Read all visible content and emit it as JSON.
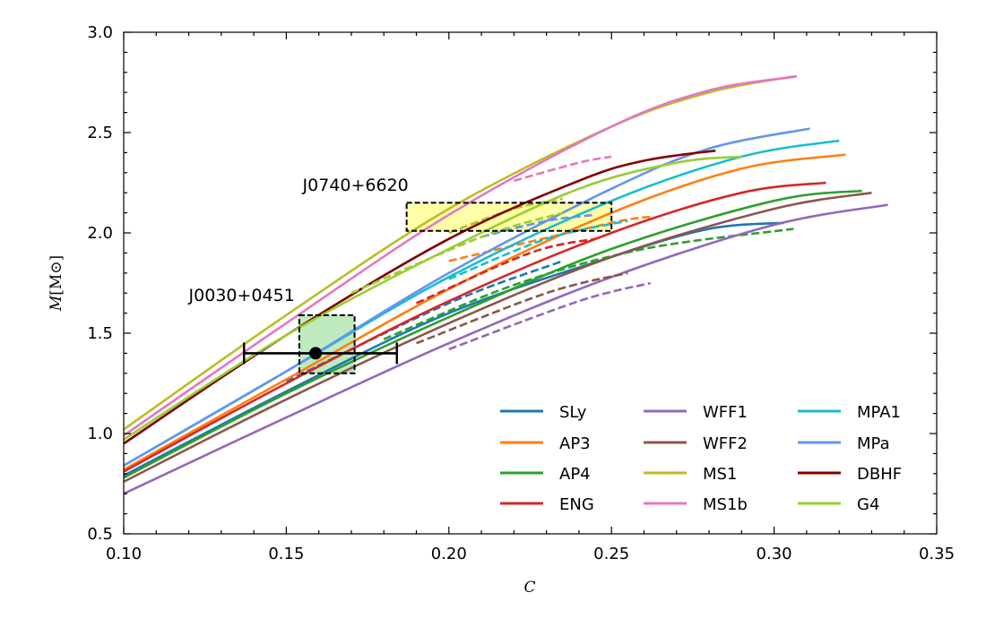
{
  "chart_data": {
    "type": "line",
    "title": "",
    "xlabel": "C",
    "ylabel": "M[M_⊙]",
    "ylabel_main": "M",
    "ylabel_sub": "[M",
    "ylabel_sym": "⊙",
    "ylabel_end": "]",
    "xlim": [
      0.1,
      0.35
    ],
    "ylim": [
      0.5,
      3.0
    ],
    "x_ticks": [
      "0.10",
      "0.15",
      "0.20",
      "0.25",
      "0.30",
      "0.35"
    ],
    "x_tick_values": [
      0.1,
      0.15,
      0.2,
      0.25,
      0.3,
      0.35
    ],
    "y_ticks": [
      "0.5",
      "1.0",
      "1.5",
      "2.0",
      "2.5",
      "3.0"
    ],
    "y_tick_values": [
      0.5,
      1.0,
      1.5,
      2.0,
      2.5,
      3.0
    ],
    "legend_position": "lower-right",
    "legend_columns": 3,
    "series": [
      {
        "name": "SLy",
        "color": "#1f77b4",
        "solid": [
          [
            0.1,
            0.79
          ],
          [
            0.15,
            1.21
          ],
          [
            0.2,
            1.6
          ],
          [
            0.25,
            1.88
          ],
          [
            0.28,
            2.02
          ],
          [
            0.303,
            2.05
          ]
        ],
        "dashed": [
          [
            0.15,
            1.26
          ],
          [
            0.2,
            1.65
          ],
          [
            0.235,
            1.86
          ]
        ]
      },
      {
        "name": "AP3",
        "color": "#ff7f0e",
        "solid": [
          [
            0.1,
            0.82
          ],
          [
            0.15,
            1.27
          ],
          [
            0.2,
            1.72
          ],
          [
            0.25,
            2.1
          ],
          [
            0.29,
            2.32
          ],
          [
            0.322,
            2.39
          ]
        ],
        "dashed": [
          [
            0.2,
            1.86
          ],
          [
            0.25,
            2.05
          ],
          [
            0.263,
            2.08
          ]
        ]
      },
      {
        "name": "AP4",
        "color": "#2ca02c",
        "solid": [
          [
            0.1,
            0.78
          ],
          [
            0.15,
            1.2
          ],
          [
            0.2,
            1.58
          ],
          [
            0.25,
            1.92
          ],
          [
            0.3,
            2.16
          ],
          [
            0.327,
            2.21
          ]
        ],
        "dashed": [
          [
            0.18,
            1.47
          ],
          [
            0.22,
            1.74
          ],
          [
            0.26,
            1.92
          ],
          [
            0.306,
            2.02
          ]
        ]
      },
      {
        "name": "ENG",
        "color": "#d62728",
        "solid": [
          [
            0.1,
            0.81
          ],
          [
            0.15,
            1.25
          ],
          [
            0.2,
            1.66
          ],
          [
            0.25,
            2.0
          ],
          [
            0.29,
            2.2
          ],
          [
            0.316,
            2.25
          ]
        ],
        "dashed": [
          [
            0.19,
            1.65
          ],
          [
            0.225,
            1.9
          ],
          [
            0.245,
            1.97
          ]
        ]
      },
      {
        "name": "WFF1",
        "color": "#9467bd",
        "solid": [
          [
            0.1,
            0.7
          ],
          [
            0.15,
            1.08
          ],
          [
            0.2,
            1.45
          ],
          [
            0.25,
            1.78
          ],
          [
            0.3,
            2.04
          ],
          [
            0.335,
            2.14
          ]
        ],
        "dashed": [
          [
            0.2,
            1.42
          ],
          [
            0.24,
            1.66
          ],
          [
            0.262,
            1.75
          ]
        ]
      },
      {
        "name": "WFF2",
        "color": "#8c564b",
        "solid": [
          [
            0.1,
            0.76
          ],
          [
            0.15,
            1.17
          ],
          [
            0.2,
            1.55
          ],
          [
            0.25,
            1.88
          ],
          [
            0.3,
            2.12
          ],
          [
            0.33,
            2.2
          ]
        ],
        "dashed": [
          [
            0.19,
            1.45
          ],
          [
            0.23,
            1.7
          ],
          [
            0.255,
            1.8
          ]
        ]
      },
      {
        "name": "MS1",
        "color": "#bcbd22",
        "solid": [
          [
            0.1,
            1.02
          ],
          [
            0.15,
            1.59
          ],
          [
            0.2,
            2.12
          ],
          [
            0.25,
            2.53
          ],
          [
            0.28,
            2.7
          ],
          [
            0.306,
            2.78
          ]
        ],
        "dashed": [
          [
            0.2,
            2.0
          ],
          [
            0.22,
            2.12
          ],
          [
            0.235,
            2.17
          ]
        ]
      },
      {
        "name": "MS1b",
        "color": "#e377c2",
        "solid": [
          [
            0.1,
            0.99
          ],
          [
            0.15,
            1.55
          ],
          [
            0.2,
            2.09
          ],
          [
            0.25,
            2.53
          ],
          [
            0.28,
            2.71
          ],
          [
            0.307,
            2.78
          ]
        ],
        "dashed": [
          [
            0.22,
            2.26
          ],
          [
            0.24,
            2.35
          ],
          [
            0.25,
            2.38
          ]
        ]
      },
      {
        "name": "MPA1",
        "color": "#17becf",
        "solid": [
          [
            0.1,
            0.84
          ],
          [
            0.15,
            1.31
          ],
          [
            0.2,
            1.78
          ],
          [
            0.25,
            2.16
          ],
          [
            0.29,
            2.38
          ],
          [
            0.32,
            2.46
          ]
        ],
        "dashed": [
          [
            0.2,
            1.77
          ],
          [
            0.23,
            1.97
          ],
          [
            0.255,
            2.06
          ]
        ]
      },
      {
        "name": "MPa",
        "color": "#6495ed",
        "solid": [
          [
            0.1,
            0.84
          ],
          [
            0.15,
            1.31
          ],
          [
            0.2,
            1.8
          ],
          [
            0.25,
            2.22
          ],
          [
            0.28,
            2.42
          ],
          [
            0.311,
            2.52
          ]
        ],
        "dashed": [
          [
            0.21,
            1.98
          ],
          [
            0.23,
            2.06
          ],
          [
            0.245,
            2.09
          ]
        ]
      },
      {
        "name": "DBHF",
        "color": "#800000",
        "solid": [
          [
            0.1,
            0.95
          ],
          [
            0.15,
            1.49
          ],
          [
            0.2,
            1.97
          ],
          [
            0.24,
            2.26
          ],
          [
            0.26,
            2.36
          ],
          [
            0.282,
            2.41
          ]
        ],
        "dashed": []
      },
      {
        "name": "G4",
        "color": "#9acd32",
        "solid": [
          [
            0.1,
            0.97
          ],
          [
            0.15,
            1.49
          ],
          [
            0.2,
            1.92
          ],
          [
            0.24,
            2.22
          ],
          [
            0.27,
            2.35
          ],
          [
            0.29,
            2.38
          ]
        ],
        "dashed": [
          [
            0.17,
            1.7
          ],
          [
            0.21,
            1.98
          ],
          [
            0.235,
            2.1
          ]
        ]
      }
    ],
    "annotations": [
      {
        "label": "J0740+6620",
        "label_x": 0.155,
        "label_y": 2.21,
        "box": {
          "x": [
            0.187,
            0.25
          ],
          "y": [
            2.01,
            2.15
          ]
        },
        "fill": "#ffff99"
      },
      {
        "label": "J0030+0451",
        "label_x": 0.12,
        "label_y": 1.66,
        "box": {
          "x": [
            0.154,
            0.171
          ],
          "y": [
            1.3,
            1.59
          ]
        },
        "fill": "#b3e6b3"
      }
    ],
    "errorbar": {
      "x": 0.159,
      "y": 1.4,
      "xerr_low": 0.137,
      "xerr_high": 0.184
    }
  }
}
